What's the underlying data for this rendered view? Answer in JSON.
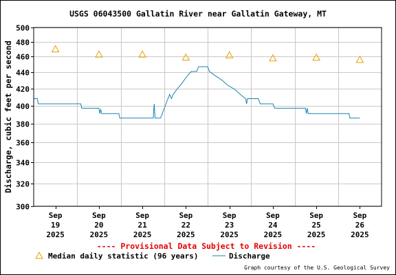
{
  "chart_data": {
    "type": "line",
    "title": "USGS 06043500 Gallatin River near Gallatin Gateway, MT",
    "ylabel": "Discharge, cubic feet per second",
    "xlabel": "",
    "y_scale": "log",
    "ylim": [
      300,
      500
    ],
    "y_ticks": [
      300,
      320,
      340,
      360,
      380,
      400,
      420,
      440,
      460,
      480,
      500
    ],
    "x_range": [
      "2025-09-18T12:00",
      "2025-09-26T12:00"
    ],
    "x_ticks": [
      {
        "date": "2025-09-19",
        "month": "Sep",
        "day": "19",
        "year": "2025"
      },
      {
        "date": "2025-09-20",
        "month": "Sep",
        "day": "20",
        "year": "2025"
      },
      {
        "date": "2025-09-21",
        "month": "Sep",
        "day": "21",
        "year": "2025"
      },
      {
        "date": "2025-09-22",
        "month": "Sep",
        "day": "22",
        "year": "2025"
      },
      {
        "date": "2025-09-23",
        "month": "Sep",
        "day": "23",
        "year": "2025"
      },
      {
        "date": "2025-09-24",
        "month": "Sep",
        "day": "24",
        "year": "2025"
      },
      {
        "date": "2025-09-25",
        "month": "Sep",
        "day": "25",
        "year": "2025"
      },
      {
        "date": "2025-09-26",
        "month": "Sep",
        "day": "26",
        "year": "2025"
      }
    ],
    "grid": true,
    "series": [
      {
        "name": "Median daily statistic (96 years)",
        "marker": "triangle",
        "color": "#e6a000",
        "points": [
          {
            "x": "2025-09-19",
            "y": 470
          },
          {
            "x": "2025-09-20",
            "y": 463
          },
          {
            "x": "2025-09-21",
            "y": 463
          },
          {
            "x": "2025-09-22",
            "y": 459
          },
          {
            "x": "2025-09-23",
            "y": 462
          },
          {
            "x": "2025-09-24",
            "y": 458
          },
          {
            "x": "2025-09-25",
            "y": 459
          },
          {
            "x": "2025-09-26",
            "y": 456
          }
        ]
      },
      {
        "name": "Discharge",
        "marker": "line",
        "color": "#1a80b0",
        "points": [
          {
            "x": "2025-09-18T12:00",
            "y": 408
          },
          {
            "x": "2025-09-18T14:00",
            "y": 408
          },
          {
            "x": "2025-09-18T14:30",
            "y": 402
          },
          {
            "x": "2025-09-19T14:00",
            "y": 402
          },
          {
            "x": "2025-09-19T14:30",
            "y": 397
          },
          {
            "x": "2025-09-20T00:00",
            "y": 397
          },
          {
            "x": "2025-09-20T00:30",
            "y": 391
          },
          {
            "x": "2025-09-20T01:00",
            "y": 396
          },
          {
            "x": "2025-09-20T01:30",
            "y": 391
          },
          {
            "x": "2025-09-20T11:00",
            "y": 391
          },
          {
            "x": "2025-09-20T11:30",
            "y": 386
          },
          {
            "x": "2025-09-21T06:00",
            "y": 386
          },
          {
            "x": "2025-09-21T06:30",
            "y": 402
          },
          {
            "x": "2025-09-21T07:00",
            "y": 386
          },
          {
            "x": "2025-09-21T10:00",
            "y": 386
          },
          {
            "x": "2025-09-21T11:00",
            "y": 391
          },
          {
            "x": "2025-09-21T13:00",
            "y": 402
          },
          {
            "x": "2025-09-21T15:00",
            "y": 413
          },
          {
            "x": "2025-09-21T16:00",
            "y": 408
          },
          {
            "x": "2025-09-21T17:00",
            "y": 413
          },
          {
            "x": "2025-09-21T19:00",
            "y": 419
          },
          {
            "x": "2025-09-21T21:00",
            "y": 424
          },
          {
            "x": "2025-09-21T23:00",
            "y": 430
          },
          {
            "x": "2025-09-22T01:00",
            "y": 436
          },
          {
            "x": "2025-09-22T03:00",
            "y": 441
          },
          {
            "x": "2025-09-22T06:00",
            "y": 441
          },
          {
            "x": "2025-09-22T07:00",
            "y": 447
          },
          {
            "x": "2025-09-22T12:00",
            "y": 447
          },
          {
            "x": "2025-09-22T13:00",
            "y": 441
          },
          {
            "x": "2025-09-22T16:00",
            "y": 436
          },
          {
            "x": "2025-09-22T20:00",
            "y": 430
          },
          {
            "x": "2025-09-22T23:00",
            "y": 424
          },
          {
            "x": "2025-09-23T03:00",
            "y": 419
          },
          {
            "x": "2025-09-23T06:00",
            "y": 413
          },
          {
            "x": "2025-09-23T09:00",
            "y": 408
          },
          {
            "x": "2025-09-23T09:30",
            "y": 402
          },
          {
            "x": "2025-09-23T10:00",
            "y": 408
          },
          {
            "x": "2025-09-23T16:00",
            "y": 408
          },
          {
            "x": "2025-09-23T17:00",
            "y": 402
          },
          {
            "x": "2025-09-24T00:00",
            "y": 402
          },
          {
            "x": "2025-09-24T01:00",
            "y": 397
          },
          {
            "x": "2025-09-24T18:00",
            "y": 397
          },
          {
            "x": "2025-09-24T18:30",
            "y": 391
          },
          {
            "x": "2025-09-24T19:00",
            "y": 397
          },
          {
            "x": "2025-09-24T19:30",
            "y": 391
          },
          {
            "x": "2025-09-25T18:00",
            "y": 391
          },
          {
            "x": "2025-09-25T18:30",
            "y": 386
          },
          {
            "x": "2025-09-26T00:00",
            "y": 386
          }
        ]
      }
    ]
  },
  "provisional_notice": "---- Provisional Data Subject to Revision ----",
  "legend": {
    "median_label": "Median daily statistic (96 years)",
    "discharge_label": "Discharge"
  },
  "credit": "Graph courtesy of the U.S. Geological Survey",
  "colors": {
    "median": "#e6a000",
    "discharge": "#1a80b0",
    "grid": "#c8c8c8",
    "notice": "#e60000"
  }
}
